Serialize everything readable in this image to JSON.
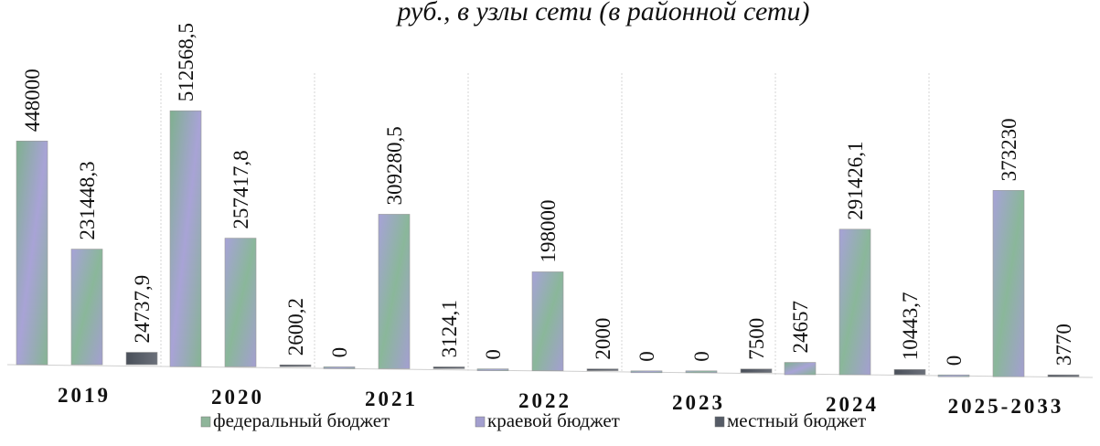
{
  "chart_data": {
    "type": "bar",
    "title": "руб., в узлы сети (в районной сети)",
    "categories": [
      "2019",
      "2020",
      "2021",
      "2022",
      "2023",
      "2024",
      "2025-2033"
    ],
    "series": [
      {
        "name": "федеральный бюджет",
        "color": "#8fb59a",
        "values": [
          448000,
          512568.5,
          0,
          0,
          0,
          24657,
          0
        ],
        "labels": [
          "448000",
          "512568,5",
          "0",
          "0",
          "0",
          "24657",
          "0"
        ]
      },
      {
        "name": "краевой бюджет",
        "color": "#a39fcf",
        "values": [
          231448.3,
          257417.8,
          309280.5,
          198000,
          0,
          291426.1,
          373230
        ],
        "labels": [
          "231448,3",
          "257417,8",
          "309280,5",
          "198000",
          "0",
          "291426,1",
          "373230"
        ]
      },
      {
        "name": "местный бюджет",
        "color": "#555b66",
        "values": [
          24737.9,
          2600.2,
          3124.1,
          2000,
          7500,
          10443.7,
          3770
        ],
        "labels": [
          "24737,9",
          "2600,2",
          "3124,1",
          "2000",
          "7500",
          "10443,7",
          "3770"
        ]
      }
    ],
    "legend": "bottom",
    "ylim": [
      0,
      520000
    ],
    "grid": "vertical separators"
  }
}
